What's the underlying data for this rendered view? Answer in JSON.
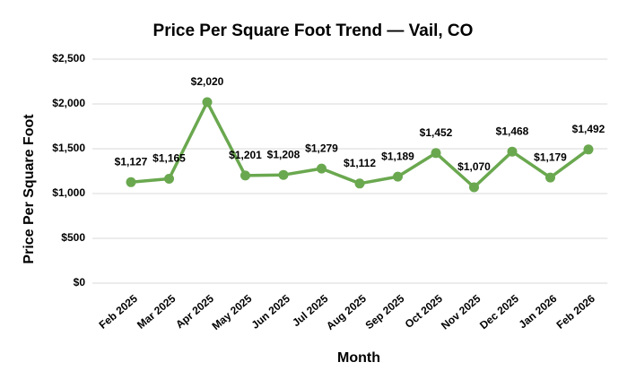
{
  "chart_data": {
    "type": "line",
    "title": "Price Per Square Foot Trend — Vail, CO",
    "x_label": "Month",
    "y_label": "Price Per Square Foot",
    "categories": [
      "Feb 2025",
      "Mar 2025",
      "Apr 2025",
      "May 2025",
      "Jun 2025",
      "Jul 2025",
      "Aug 2025",
      "Sep 2025",
      "Oct 2025",
      "Nov 2025",
      "Dec 2025",
      "Jan 2026",
      "Feb 2026"
    ],
    "values": [
      1127,
      1165,
      2020,
      1201,
      1208,
      1279,
      1112,
      1189,
      1452,
      1070,
      1468,
      1179,
      1492
    ],
    "value_labels": [
      "$1,127",
      "$1,165",
      "$2,020",
      "$1,201",
      "$1,208",
      "$1,279",
      "$1,112",
      "$1,189",
      "$1,452",
      "$1,070",
      "$1,468",
      "$1,179",
      "$1,492"
    ],
    "color": "#6aa84f",
    "ylim": [
      0,
      2500
    ],
    "yticks": [
      {
        "value": 0,
        "label": "$0"
      },
      {
        "value": 500,
        "label": "$500"
      },
      {
        "value": 1000,
        "label": "$1,000"
      },
      {
        "value": 1500,
        "label": "$1,500"
      },
      {
        "value": 2000,
        "label": "$2,000"
      },
      {
        "value": 2500,
        "label": "$2,500"
      }
    ],
    "grid": true
  }
}
